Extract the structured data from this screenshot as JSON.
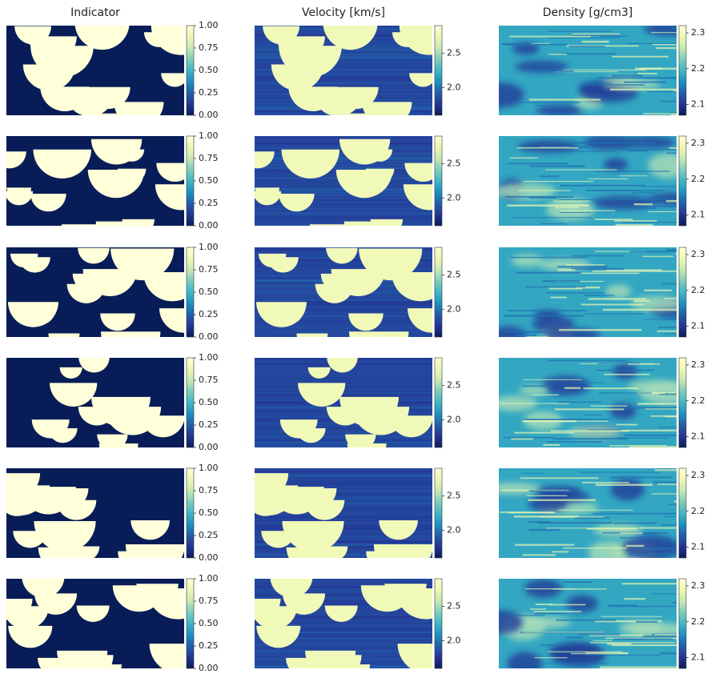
{
  "chart_data": [
    {
      "type": "heatmap",
      "title": "Indicator",
      "clim": [
        0,
        1
      ],
      "cticks": [
        {
          "value": 0,
          "label": "0.00"
        },
        {
          "value": 0.25,
          "label": "0.25"
        },
        {
          "value": 0.5,
          "label": "0.50"
        },
        {
          "value": 0.75,
          "label": "0.75"
        },
        {
          "value": 1,
          "label": "1.00"
        }
      ],
      "colors": [
        "#081d58",
        "#253494",
        "#225ea8",
        "#1d91c0",
        "#41b6c4",
        "#7fcdbb",
        "#c7e9b4",
        "#edf8b1",
        "#ffffd9"
      ]
    },
    {
      "type": "heatmap",
      "title": "Velocity [km/s]",
      "clim": [
        1.6,
        2.9
      ],
      "cticks": [
        {
          "value": 2,
          "label": "2.0"
        },
        2.5
      ],
      "colors": [
        "#081d58",
        "#253494",
        "#225ea8",
        "#1d91c0",
        "#41b6c4",
        "#7fcdbb",
        "#c7e9b4",
        "#edf8b1",
        "#ffffd9"
      ]
    },
    {
      "type": "heatmap",
      "title": "Density [g/cm3]",
      "clim": [
        2.07,
        2.32
      ],
      "cticks": [
        2.1,
        2.2,
        2.3
      ],
      "colors": [
        "#081d58",
        "#253494",
        "#225ea8",
        "#1d91c0",
        "#41b6c4",
        "#7fcdbb",
        "#c7e9b4",
        "#edf8b1",
        "#ffffd9"
      ]
    }
  ]
}
